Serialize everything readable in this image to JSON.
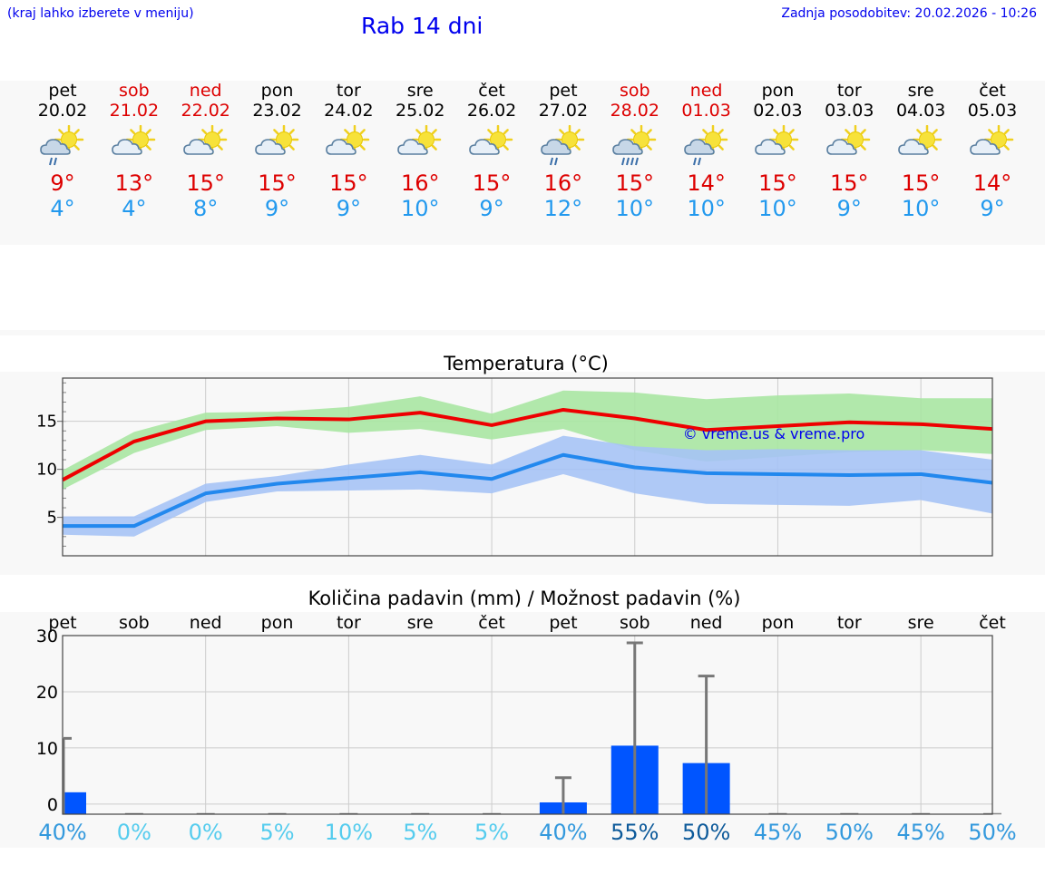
{
  "header": {
    "location_hint": "(kraj lahko izberete v meniju)",
    "title": "Rab 14 dni",
    "updated": "Zadnja posodobitev: 20.02.2026 - 10:26"
  },
  "colors": {
    "max_line": "#ee0000",
    "max_band": "#a8e6a2",
    "min_line": "#2288ee",
    "min_band": "#a6c3f5",
    "bar": "#0055ff",
    "weekend": "#dd0000",
    "mintext": "#2299ee"
  },
  "days": [
    {
      "name": "pet",
      "date": "20.02",
      "weekend": false,
      "icon": "sun-cloud-light-rain-icon",
      "max": "9°",
      "min": "4°"
    },
    {
      "name": "sob",
      "date": "21.02",
      "weekend": true,
      "icon": "sun-cloud-icon",
      "max": "13°",
      "min": "4°"
    },
    {
      "name": "ned",
      "date": "22.02",
      "weekend": true,
      "icon": "sun-cloud-icon",
      "max": "15°",
      "min": "8°"
    },
    {
      "name": "pon",
      "date": "23.02",
      "weekend": false,
      "icon": "sun-cloud-icon",
      "max": "15°",
      "min": "9°"
    },
    {
      "name": "tor",
      "date": "24.02",
      "weekend": false,
      "icon": "sun-cloud-icon",
      "max": "15°",
      "min": "9°"
    },
    {
      "name": "sre",
      "date": "25.02",
      "weekend": false,
      "icon": "sun-cloud-icon",
      "max": "16°",
      "min": "10°"
    },
    {
      "name": "čet",
      "date": "26.02",
      "weekend": false,
      "icon": "sun-cloud-icon",
      "max": "15°",
      "min": "9°"
    },
    {
      "name": "pet",
      "date": "27.02",
      "weekend": false,
      "icon": "sun-cloud-light-rain-icon",
      "max": "16°",
      "min": "12°"
    },
    {
      "name": "sob",
      "date": "28.02",
      "weekend": true,
      "icon": "sun-cloud-rain-icon",
      "max": "15°",
      "min": "10°"
    },
    {
      "name": "ned",
      "date": "01.03",
      "weekend": true,
      "icon": "sun-cloud-light-rain-icon",
      "max": "14°",
      "min": "10°"
    },
    {
      "name": "pon",
      "date": "02.03",
      "weekend": false,
      "icon": "sun-cloud-icon",
      "max": "15°",
      "min": "10°"
    },
    {
      "name": "tor",
      "date": "03.03",
      "weekend": false,
      "icon": "sun-cloud-icon",
      "max": "15°",
      "min": "9°"
    },
    {
      "name": "sre",
      "date": "04.03",
      "weekend": false,
      "icon": "sun-cloud-icon",
      "max": "15°",
      "min": "10°"
    },
    {
      "name": "čet",
      "date": "05.03",
      "weekend": false,
      "icon": "sun-cloud-icon",
      "max": "14°",
      "min": "9°"
    }
  ],
  "chart_data": [
    {
      "type": "line",
      "title": "Temperatura (°C)",
      "x": [
        "pet",
        "sob",
        "ned",
        "pon",
        "tor",
        "sre",
        "čet",
        "pet",
        "sob",
        "ned",
        "pon",
        "tor",
        "sre",
        "čet"
      ],
      "ylim": [
        1,
        19.5
      ],
      "yticks": [
        5,
        10,
        15
      ],
      "grid": true,
      "watermark": "© vreme.us & vreme.pro",
      "series": [
        {
          "name": "max",
          "values": [
            8.9,
            12.9,
            15.0,
            15.3,
            15.2,
            15.9,
            14.6,
            16.2,
            15.3,
            14.1,
            14.5,
            14.9,
            14.7,
            14.2
          ],
          "band_low": [
            7.9,
            11.7,
            14.1,
            14.5,
            13.8,
            14.2,
            13.1,
            14.2,
            12.0,
            10.8,
            11.3,
            11.8,
            12.0,
            11.6
          ],
          "band_high": [
            9.9,
            13.9,
            15.9,
            16.0,
            16.5,
            17.6,
            15.8,
            18.2,
            18.0,
            17.3,
            17.7,
            17.9,
            17.4,
            17.4
          ]
        },
        {
          "name": "min",
          "values": [
            4.1,
            4.1,
            7.5,
            8.5,
            9.1,
            9.7,
            9.0,
            11.5,
            10.2,
            9.6,
            9.5,
            9.4,
            9.5,
            8.6
          ],
          "band_low": [
            3.2,
            3.0,
            6.6,
            7.7,
            7.8,
            7.9,
            7.5,
            9.5,
            7.5,
            6.4,
            6.3,
            6.2,
            6.8,
            5.4
          ],
          "band_high": [
            5.1,
            5.1,
            8.5,
            9.3,
            10.5,
            11.5,
            10.5,
            13.5,
            12.4,
            12.0,
            12.1,
            12.0,
            12.0,
            11.0
          ]
        }
      ]
    },
    {
      "type": "bar",
      "title": "Količina padavin (mm) / Možnost padavin (%)",
      "categories": [
        "pet",
        "sob",
        "ned",
        "pon",
        "tor",
        "sre",
        "čet",
        "pet",
        "sob",
        "ned",
        "pon",
        "tor",
        "sre",
        "čet"
      ],
      "ylim": [
        -1.8,
        30
      ],
      "yticks": [
        0,
        10,
        20,
        30
      ],
      "grid": true,
      "values": [
        2.1,
        0,
        0,
        0,
        0,
        0,
        0,
        0.3,
        10.4,
        7.3,
        0,
        0,
        0,
        0
      ],
      "error_high": [
        11.7,
        0,
        0,
        0,
        0,
        0,
        0,
        4.7,
        28.7,
        22.8,
        0,
        0,
        0,
        0
      ],
      "probability": [
        "40%",
        "0%",
        "0%",
        "5%",
        "10%",
        "5%",
        "5%",
        "40%",
        "55%",
        "50%",
        "45%",
        "50%",
        "45%",
        "50%"
      ],
      "probability_levels": [
        3,
        1,
        1,
        1,
        1,
        1,
        1,
        3,
        4,
        4,
        3,
        3,
        3,
        3
      ]
    }
  ]
}
